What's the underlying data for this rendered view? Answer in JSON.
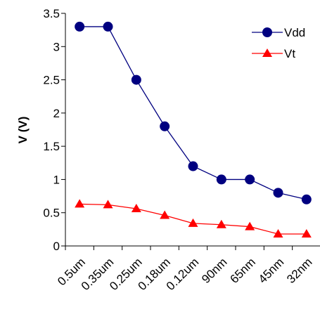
{
  "chart_data": {
    "type": "line",
    "categories": [
      "0.5um",
      "0.35um",
      "0.25um",
      "0.18um",
      "0.12um",
      "90nm",
      "65nm",
      "45nm",
      "32nm"
    ],
    "series": [
      {
        "name": "Vdd",
        "color": "#000080",
        "marker": "circle",
        "values": [
          3.3,
          3.3,
          2.5,
          1.8,
          1.2,
          1.0,
          1.0,
          0.8,
          0.7
        ]
      },
      {
        "name": "Vt",
        "color": "#ff0000",
        "marker": "triangle",
        "values": [
          0.63,
          0.62,
          0.56,
          0.46,
          0.34,
          0.32,
          0.29,
          0.18,
          0.18
        ]
      }
    ],
    "xlabel": "",
    "ylabel": "V (V)",
    "ylim": [
      0,
      3.5
    ],
    "yticks": [
      "0",
      "0.5",
      "1",
      "1.5",
      "2",
      "2.5",
      "3",
      "3.5"
    ],
    "legend_position": "top-right",
    "grid": false
  }
}
